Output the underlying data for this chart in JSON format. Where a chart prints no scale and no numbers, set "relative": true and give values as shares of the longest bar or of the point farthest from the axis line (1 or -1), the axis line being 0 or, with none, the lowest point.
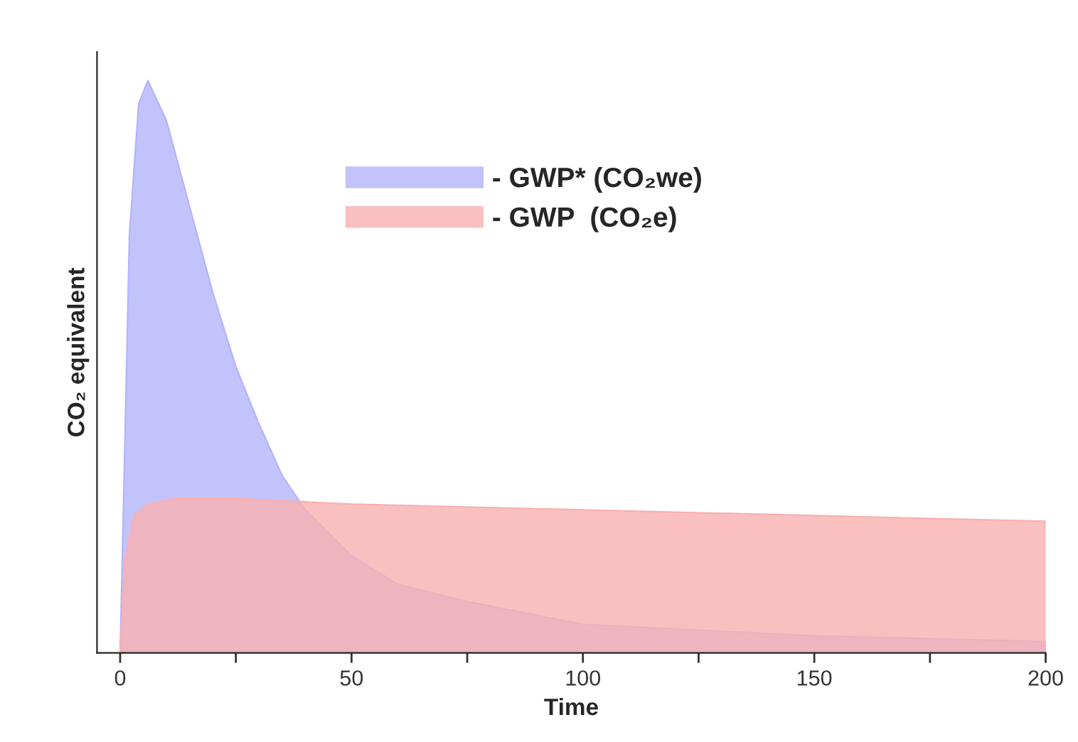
{
  "chart_data": {
    "type": "area",
    "relative": true,
    "xlabel": "Time",
    "ylabel": "CO₂ equivalent",
    "xlim": [
      -5,
      200
    ],
    "xticks": [
      0,
      {
        "value": 25,
        "label": null
      },
      50,
      {
        "value": 75,
        "label": null
      },
      100,
      {
        "value": 125,
        "label": null
      },
      150,
      {
        "value": 175,
        "label": null
      },
      200
    ],
    "grid": false,
    "legend": "top",
    "series": [
      {
        "name": "- GWP* (CO₂we)",
        "color": "#b4b4fa",
        "x": [
          0,
          1,
          2,
          4,
          6,
          10,
          15,
          20,
          25,
          30,
          35,
          40,
          50,
          60,
          75,
          100,
          125,
          150,
          200
        ],
        "values": [
          0,
          0.36,
          0.73,
          0.96,
          1.0,
          0.93,
          0.78,
          0.63,
          0.5,
          0.4,
          0.31,
          0.25,
          0.17,
          0.12,
          0.09,
          0.05,
          0.04,
          0.03,
          0.02
        ]
      },
      {
        "name": "- GWP  (CO₂e)",
        "color": "#f9b0b0",
        "x": [
          0,
          1,
          3,
          6,
          12,
          25,
          50,
          100,
          150,
          200
        ],
        "values": [
          0,
          0.16,
          0.24,
          0.26,
          0.27,
          0.27,
          0.26,
          0.25,
          0.24,
          0.23
        ]
      }
    ]
  }
}
